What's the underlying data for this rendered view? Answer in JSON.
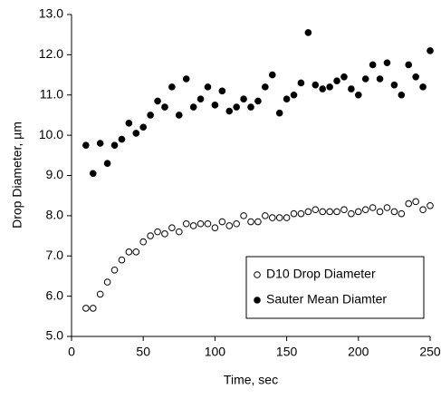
{
  "chart_data": {
    "type": "scatter",
    "xlabel": "Time, sec",
    "ylabel": "Drop Diameter, µm",
    "x": [
      10,
      15,
      20,
      25,
      30,
      35,
      40,
      45,
      50,
      55,
      60,
      65,
      70,
      75,
      80,
      85,
      90,
      95,
      100,
      105,
      110,
      115,
      120,
      125,
      130,
      135,
      140,
      145,
      150,
      155,
      160,
      165,
      170,
      175,
      180,
      185,
      190,
      195,
      200,
      205,
      210,
      215,
      220,
      225,
      230,
      235,
      240,
      245,
      250
    ],
    "series": [
      {
        "name": "D10 Drop Diameter",
        "color": "#000000",
        "marker": "open",
        "values": [
          5.7,
          5.7,
          6.05,
          6.35,
          6.65,
          6.9,
          7.1,
          7.1,
          7.35,
          7.5,
          7.6,
          7.55,
          7.7,
          7.6,
          7.8,
          7.75,
          7.8,
          7.8,
          7.7,
          7.85,
          7.75,
          7.8,
          8.0,
          7.85,
          7.85,
          8.0,
          7.95,
          7.95,
          7.95,
          8.05,
          8.05,
          8.1,
          8.15,
          8.1,
          8.1,
          8.1,
          8.15,
          8.05,
          8.1,
          8.15,
          8.2,
          8.1,
          8.2,
          8.1,
          8.05,
          8.3,
          8.35,
          8.15,
          8.25
        ]
      },
      {
        "name": "Sauter Mean Diamter",
        "color": "#000000",
        "marker": "filled",
        "values": [
          9.75,
          9.05,
          9.8,
          9.3,
          9.75,
          9.9,
          10.3,
          10.05,
          10.2,
          10.5,
          10.85,
          10.7,
          11.2,
          10.5,
          11.4,
          10.7,
          10.9,
          11.2,
          10.75,
          11.1,
          10.6,
          10.7,
          10.9,
          10.7,
          10.85,
          11.2,
          11.5,
          10.55,
          10.9,
          11.0,
          11.3,
          12.55,
          11.25,
          11.15,
          11.2,
          11.35,
          11.45,
          11.15,
          11.0,
          11.4,
          11.75,
          11.4,
          11.8,
          11.25,
          11.0,
          11.75,
          11.45,
          11.2,
          12.1
        ]
      }
    ],
    "xlim": [
      0,
      250
    ],
    "xticks": [
      0,
      50,
      100,
      150,
      200,
      250
    ],
    "ylim": [
      5,
      13
    ],
    "yticks": [
      {
        "value": 5,
        "label": "5.0"
      },
      {
        "value": 6,
        "label": "6.0"
      },
      {
        "value": 7,
        "label": "7.0"
      },
      {
        "value": 8,
        "label": "8.0"
      },
      {
        "value": 9,
        "label": "9.0"
      },
      {
        "value": 10,
        "label": "10.0"
      },
      {
        "value": 11,
        "label": "11.0"
      },
      {
        "value": 12,
        "label": "12.0"
      },
      {
        "value": 13,
        "label": "13.0"
      }
    ],
    "legend": "lower right"
  }
}
